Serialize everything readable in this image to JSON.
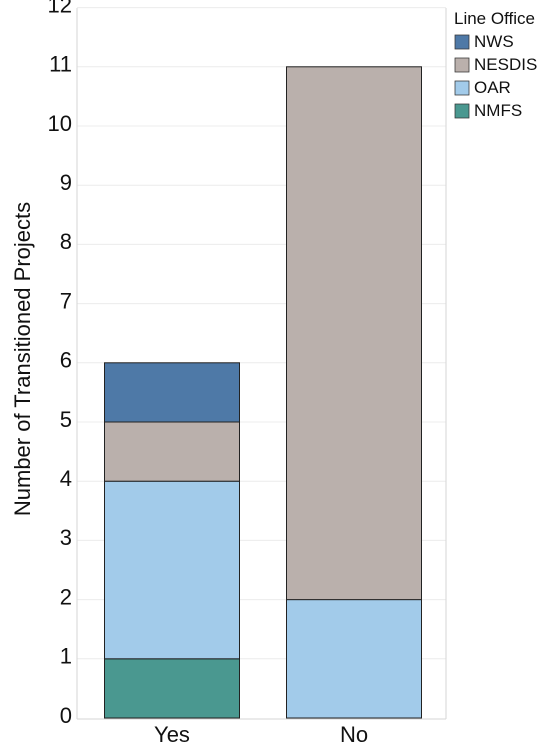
{
  "chart_data": {
    "type": "bar",
    "stacked": true,
    "categories": [
      "Yes",
      "No"
    ],
    "series": [
      {
        "name": "NMFS",
        "values": [
          1,
          0
        ],
        "color": "#4a9890"
      },
      {
        "name": "OAR",
        "values": [
          3,
          2
        ],
        "color": "#a2cbea"
      },
      {
        "name": "NESDIS",
        "values": [
          1,
          9
        ],
        "color": "#bab0ac"
      },
      {
        "name": "NWS",
        "values": [
          1,
          0
        ],
        "color": "#4e79a7"
      }
    ],
    "title": "",
    "xlabel": "",
    "ylabel": "Number of Transitioned Projects",
    "ylim": [
      0,
      12
    ],
    "yticks": [
      0,
      1,
      2,
      3,
      4,
      5,
      6,
      7,
      8,
      9,
      10,
      11,
      12
    ],
    "grid": true,
    "legend": {
      "title": "Line Office",
      "placement": "top-right",
      "order": [
        "NWS",
        "NESDIS",
        "OAR",
        "NMFS"
      ]
    }
  }
}
